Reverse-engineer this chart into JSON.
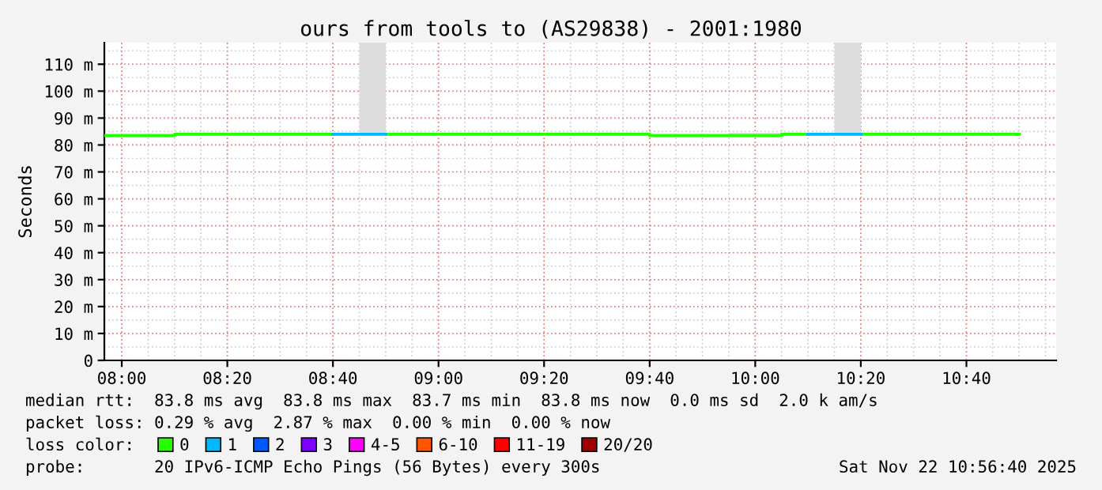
{
  "chart_data": {
    "type": "line",
    "title": "ours from tools to (AS29838) - 2001:1980",
    "ylabel": "Seconds",
    "series": [
      {
        "name": "0",
        "color": "#26ff00",
        "x": [
          7.945,
          8.1667,
          8.1667,
          8.6667
        ],
        "values": [
          83.5,
          83.5,
          84,
          84
        ]
      },
      {
        "color": "#26ff00",
        "x": [
          8.8333,
          9.6667,
          9.6667,
          10.0833,
          10.0833,
          10.1667
        ],
        "values": [
          84,
          84,
          83.5,
          83.5,
          84,
          84
        ]
      },
      {
        "color": "#26ff00",
        "x": [
          10.3333,
          10.8333
        ],
        "values": [
          84,
          84
        ]
      },
      {
        "name": "1",
        "color": "#00b8ff",
        "x": [
          8.6667,
          8.8333
        ],
        "values": [
          84,
          84
        ]
      },
      {
        "color": "#00b8ff",
        "x": [
          10.1667,
          10.3333
        ],
        "values": [
          84,
          84
        ]
      },
      {
        "name": "2",
        "color": "#0059ff"
      },
      {
        "name": "3",
        "color": "#7e00ff"
      },
      {
        "name": "4-5",
        "color": "#ff00ff"
      },
      {
        "name": "6-10",
        "color": "#ff5500"
      },
      {
        "name": "11-19",
        "color": "#ff0000"
      },
      {
        "name": "20/20",
        "color": "#a10000"
      },
      {
        "type": "bar",
        "color": "#dddddd",
        "x": [
          8.7917,
          9.9583,
          10.0417,
          10.2917
        ],
        "base": [
          84,
          83.5,
          83.5,
          84
        ],
        "values": [
          34,
          1,
          1,
          34
        ]
      }
    ],
    "xlim": [
      7.945,
      10.95
    ],
    "xticks": [
      {
        "value": 8,
        "label": "08:00"
      },
      {
        "value": 8.3333,
        "label": "08:20"
      },
      {
        "value": 8.6667,
        "label": "08:40"
      },
      {
        "value": 9,
        "label": "09:00"
      },
      {
        "value": 9.3333,
        "label": "09:20"
      },
      {
        "value": 9.6667,
        "label": "09:40"
      },
      {
        "value": 10,
        "label": "10:00"
      },
      {
        "value": 10.3333,
        "label": "10:20"
      },
      {
        "value": 10.6667,
        "label": "10:40"
      }
    ],
    "ylim": [
      0,
      118
    ],
    "yticks": [
      0,
      {
        "value": 10,
        "label": "10 m"
      },
      {
        "value": 20,
        "label": "20 m"
      },
      {
        "value": 30,
        "label": "30 m"
      },
      {
        "value": 40,
        "label": "40 m"
      },
      {
        "value": 50,
        "label": "50 m"
      },
      {
        "value": 60,
        "label": "60 m"
      },
      {
        "value": 70,
        "label": "70 m"
      },
      {
        "value": 80,
        "label": "80 m"
      },
      {
        "value": 90,
        "label": "90 m"
      },
      {
        "value": 100,
        "label": "100 m"
      },
      {
        "value": 110,
        "label": "110 m"
      }
    ],
    "grid": true,
    "legend": "bottom",
    "legend_title": "loss color:",
    "annotations": [
      "median rtt:  83.8 ms avg  83.8 ms max  83.7 ms min  83.8 ms now  0.0 ms sd  2.0 k am/s",
      "packet loss: 0.29 % avg  2.87 % max  0.00 % min  0.00 % now",
      "probe:       20 IPv6-ICMP Echo Pings (56 Bytes) every 300s",
      "Sat Nov 22 10:56:40 2025"
    ]
  }
}
